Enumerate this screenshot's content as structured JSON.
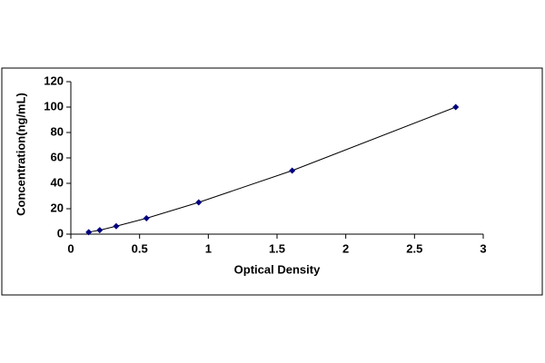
{
  "chart_data": {
    "type": "scatter",
    "x_label": "Optical Density",
    "y_label": "Concentration(ng/mL)",
    "series": [
      {
        "color": "#000080",
        "x": [
          0.13,
          0.21,
          0.33,
          0.55,
          0.93,
          1.61,
          2.8
        ],
        "values": [
          1.56,
          3.12,
          6.25,
          12.5,
          25,
          50,
          100
        ]
      }
    ],
    "xlim": [
      0,
      3
    ],
    "xticks": [
      0,
      0.5,
      1,
      1.5,
      2,
      2.5,
      3
    ],
    "ylim": [
      0,
      120
    ],
    "yticks": [
      0,
      20,
      40,
      60,
      80,
      100,
      120
    ],
    "grid": false
  }
}
